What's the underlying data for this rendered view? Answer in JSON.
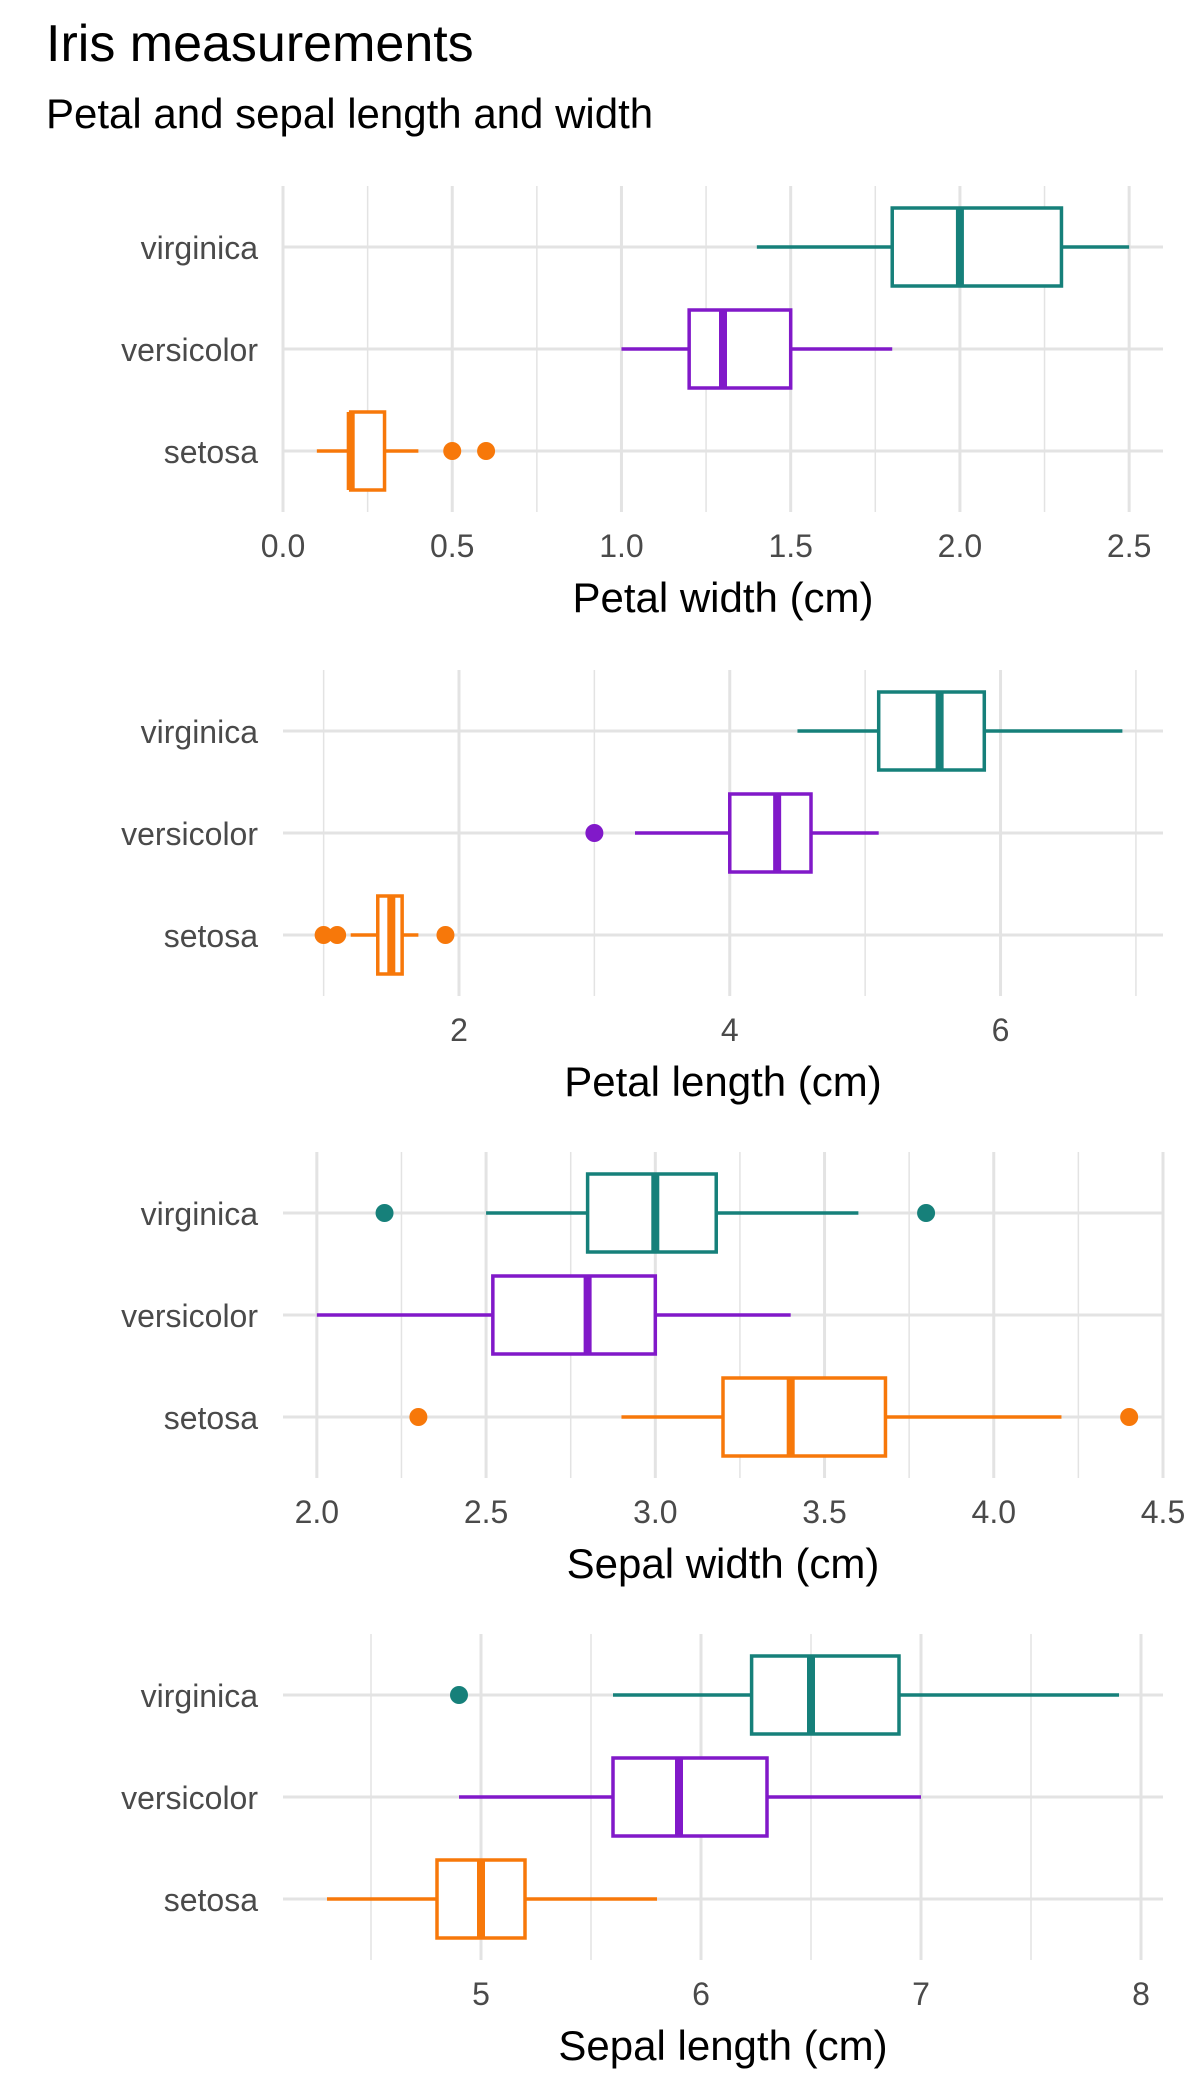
{
  "title": "Iris measurements",
  "subtitle": "Petal and sepal length and width",
  "colors": {
    "setosa": "#f7780a",
    "versicolor": "#8119c9",
    "virginica": "#16807a",
    "grid": "#e3e3e3",
    "tick": "#4a4a4a"
  },
  "chart_data": [
    {
      "type": "boxplot",
      "xlabel": "Petal width (cm)",
      "xlim": [
        0.0,
        2.6
      ],
      "ticks": [
        0.0,
        0.5,
        1.0,
        1.5,
        2.0,
        2.5
      ],
      "tick_labels": [
        "0.0",
        "0.5",
        "1.0",
        "1.5",
        "2.0",
        "2.5"
      ],
      "categories": [
        "virginica",
        "versicolor",
        "setosa"
      ],
      "series": [
        {
          "name": "virginica",
          "whisker_low": 1.4,
          "q1": 1.8,
          "median": 2.0,
          "q3": 2.3,
          "whisker_high": 2.5,
          "outliers": []
        },
        {
          "name": "versicolor",
          "whisker_low": 1.0,
          "q1": 1.2,
          "median": 1.3,
          "q3": 1.5,
          "whisker_high": 1.8,
          "outliers": []
        },
        {
          "name": "setosa",
          "whisker_low": 0.1,
          "q1": 0.2,
          "median": 0.2,
          "q3": 0.3,
          "whisker_high": 0.4,
          "outliers": [
            0.5,
            0.6
          ]
        }
      ]
    },
    {
      "type": "boxplot",
      "xlabel": "Petal length (cm)",
      "xlim": [
        0.7,
        7.2
      ],
      "ticks": [
        2,
        4,
        6
      ],
      "tick_labels": [
        "2",
        "4",
        "6"
      ],
      "categories": [
        "virginica",
        "versicolor",
        "setosa"
      ],
      "series": [
        {
          "name": "virginica",
          "whisker_low": 4.5,
          "q1": 5.1,
          "median": 5.55,
          "q3": 5.88,
          "whisker_high": 6.9,
          "outliers": []
        },
        {
          "name": "versicolor",
          "whisker_low": 3.3,
          "q1": 4.0,
          "median": 4.35,
          "q3": 4.6,
          "whisker_high": 5.1,
          "outliers": [
            3.0
          ]
        },
        {
          "name": "setosa",
          "whisker_low": 1.2,
          "q1": 1.4,
          "median": 1.5,
          "q3": 1.58,
          "whisker_high": 1.7,
          "outliers": [
            1.0,
            1.1,
            1.9
          ]
        }
      ]
    },
    {
      "type": "boxplot",
      "xlabel": "Sepal width (cm)",
      "xlim": [
        1.9,
        4.5
      ],
      "ticks": [
        2.0,
        2.5,
        3.0,
        3.5,
        4.0,
        4.5
      ],
      "tick_labels": [
        "2.0",
        "2.5",
        "3.0",
        "3.5",
        "4.0",
        "4.5"
      ],
      "categories": [
        "virginica",
        "versicolor",
        "setosa"
      ],
      "series": [
        {
          "name": "virginica",
          "whisker_low": 2.5,
          "q1": 2.8,
          "median": 3.0,
          "q3": 3.18,
          "whisker_high": 3.6,
          "outliers": [
            2.2,
            3.8
          ]
        },
        {
          "name": "versicolor",
          "whisker_low": 2.0,
          "q1": 2.52,
          "median": 2.8,
          "q3": 3.0,
          "whisker_high": 3.4,
          "outliers": []
        },
        {
          "name": "setosa",
          "whisker_low": 2.9,
          "q1": 3.2,
          "median": 3.4,
          "q3": 3.68,
          "whisker_high": 4.2,
          "outliers": [
            2.3,
            4.4
          ]
        }
      ]
    },
    {
      "type": "boxplot",
      "xlabel": "Sepal length (cm)",
      "xlim": [
        4.1,
        8.1
      ],
      "ticks": [
        5,
        6,
        7,
        8
      ],
      "tick_labels": [
        "5",
        "6",
        "7",
        "8"
      ],
      "categories": [
        "virginica",
        "versicolor",
        "setosa"
      ],
      "series": [
        {
          "name": "virginica",
          "whisker_low": 5.6,
          "q1": 6.23,
          "median": 6.5,
          "q3": 6.9,
          "whisker_high": 7.9,
          "outliers": [
            4.9
          ]
        },
        {
          "name": "versicolor",
          "whisker_low": 4.9,
          "q1": 5.6,
          "median": 5.9,
          "q3": 6.3,
          "whisker_high": 7.0,
          "outliers": []
        },
        {
          "name": "setosa",
          "whisker_low": 4.3,
          "q1": 4.8,
          "median": 5.0,
          "q3": 5.2,
          "whisker_high": 5.8,
          "outliers": []
        }
      ]
    }
  ]
}
